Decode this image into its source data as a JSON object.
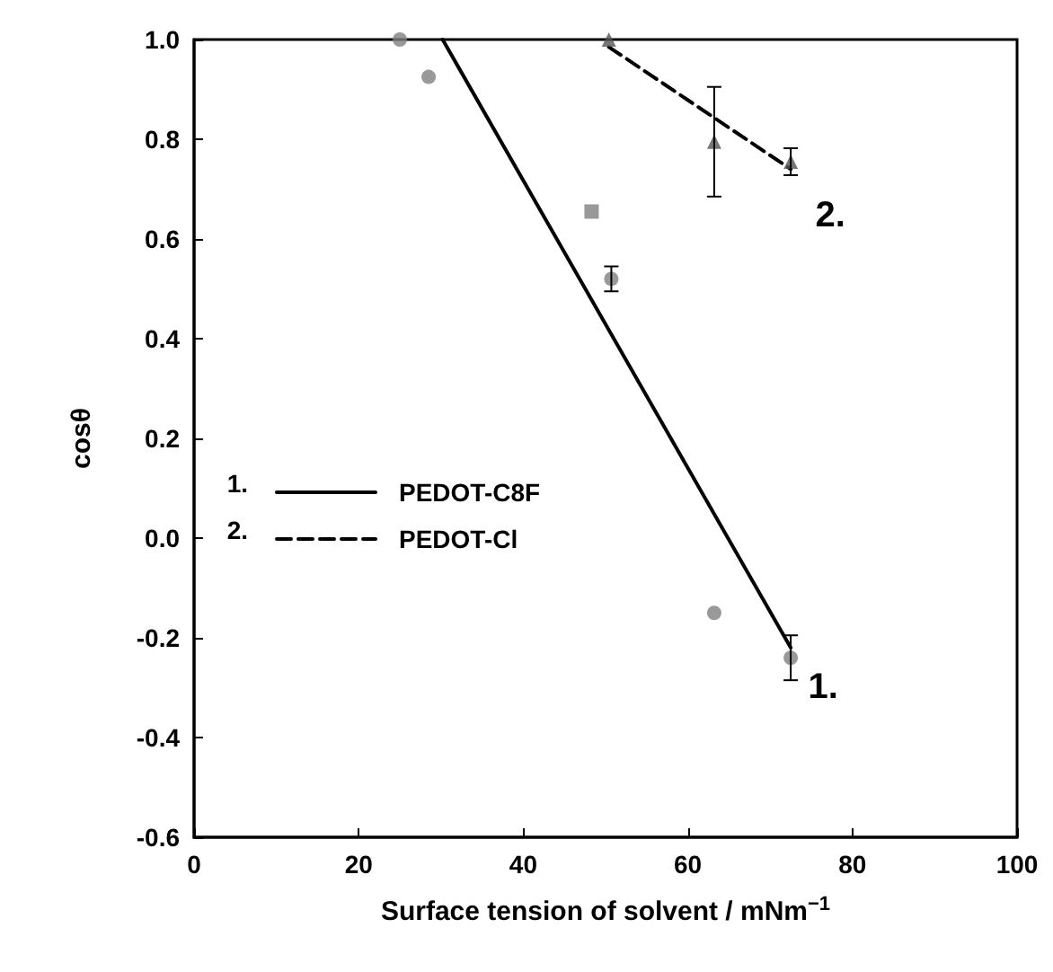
{
  "chart_data": {
    "type": "scatter",
    "xlabel": "Surface tension of solvent / mNm$^{−1}$",
    "ylabel": "cosθ",
    "xlim": [
      0,
      100
    ],
    "xticks": [
      0,
      20,
      40,
      60,
      80,
      100
    ],
    "ylim": [
      -0.6,
      1.0
    ],
    "yticks": [
      -0.6,
      -0.4,
      -0.2,
      {
        "value": 0,
        "label": "0.0"
      },
      0.2,
      0.4,
      0.6,
      0.8,
      {
        "value": 1,
        "label": "1.0"
      }
    ],
    "legend": "left",
    "grid": false,
    "series": [
      {
        "marker": "circle",
        "color": "#808080",
        "x": [
          25,
          28.5,
          50.7,
          63.2,
          72.5
        ],
        "values": [
          1.0,
          0.925,
          0.52,
          -0.15,
          -0.24
        ],
        "errors": [
          null,
          null,
          0.025,
          null,
          0.045
        ]
      },
      {
        "marker": "square",
        "color": "#808080",
        "x": [
          48.3
        ],
        "values": [
          0.655
        ]
      },
      {
        "marker": "triangle",
        "color": "#555555",
        "x": [
          50.4,
          63.2,
          72.5
        ],
        "values": [
          1.0,
          0.795,
          0.755
        ],
        "errors": [
          null,
          0.11,
          0.027
        ]
      },
      {
        "type": "line",
        "name": "PEDOT-C8F",
        "marker": "none",
        "line_style": "solid",
        "color": "#000000",
        "x": [
          30.2,
          72.5
        ],
        "values": [
          1.0,
          -0.22
        ]
      },
      {
        "type": "line",
        "name": "PEDOT-Cl",
        "marker": "none",
        "line_style": "dashed",
        "color": "#000000",
        "x": [
          50.4,
          72.5
        ],
        "values": [
          0.985,
          0.74
        ]
      }
    ],
    "annotations": [
      "1.",
      "2.",
      "1.",
      "2."
    ]
  }
}
